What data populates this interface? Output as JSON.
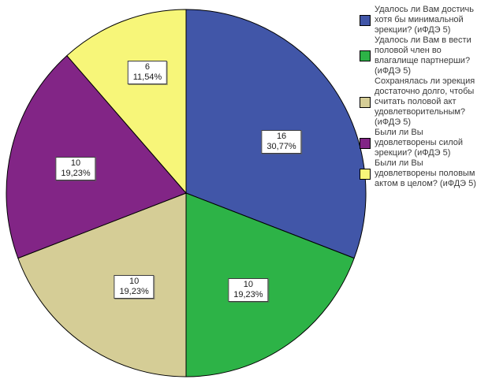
{
  "chart_data": {
    "type": "pie",
    "title": "",
    "legend_position": "right",
    "direction": "clockwise",
    "start_angle_deg": 0,
    "total": 52,
    "slices": [
      {
        "label": "Удалось ли Вам достичь\nхотя бы минимальной\nэрекции? (иФДЭ 5)",
        "value": 16,
        "percent": 30.77,
        "count_label": "16",
        "percent_label": "30,77%",
        "color": "#4156a8"
      },
      {
        "label": "Удалось ли Вам в вести\nполовой член во\nвлагалище партнерши?\n(иФДЭ 5)",
        "value": 10,
        "percent": 19.23,
        "count_label": "10",
        "percent_label": "19,23%",
        "color": "#2db347"
      },
      {
        "label": "Сохранялась ли эрекция\nдостаточно долго, чтобы\nсчитать половой акт\nудовлетворительным?\n(иФДЭ 5)",
        "value": 10,
        "percent": 19.23,
        "count_label": "10",
        "percent_label": "19,23%",
        "color": "#d5cd96"
      },
      {
        "label": "Были ли Вы\nудовлетворены силой\nэрекции? (иФДЭ 5)",
        "value": 10,
        "percent": 19.23,
        "count_label": "10",
        "percent_label": "19,23%",
        "color": "#822586"
      },
      {
        "label": "Были ли Вы\nудовлетворены половым\nактом в целом? (иФДЭ 5)",
        "value": 6,
        "percent": 11.54,
        "count_label": "6",
        "percent_label": "11,54%",
        "color": "#f7f679"
      }
    ]
  }
}
